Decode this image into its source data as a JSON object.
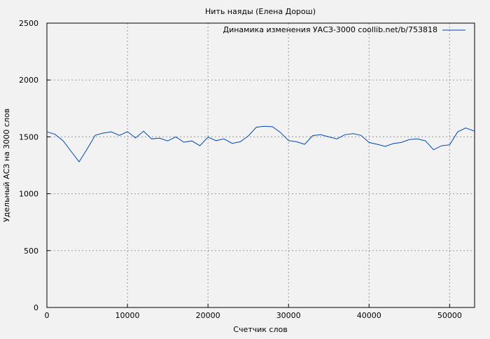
{
  "chart_data": {
    "type": "line",
    "title": "Нить наяды (Елена Дорош)",
    "xlabel": "Счетчик слов",
    "ylabel": "Удельный АСЗ на 3000 слов",
    "xlim": [
      0,
      53100
    ],
    "ylim": [
      0,
      2500
    ],
    "xticks": [
      0,
      10000,
      20000,
      30000,
      40000,
      50000
    ],
    "yticks": [
      0,
      500,
      1000,
      1500,
      2000,
      2500
    ],
    "grid": true,
    "legend_position": "top-right",
    "line_color": "#0047b3",
    "series": [
      {
        "name": "Динамика изменения УАСЗ-3000 coollib.net/b/753818",
        "x": [
          0,
          1000,
          2000,
          3000,
          4000,
          5000,
          6000,
          7000,
          8000,
          9000,
          10000,
          11000,
          12000,
          13000,
          14000,
          15000,
          16000,
          17000,
          18000,
          19000,
          20000,
          21000,
          22000,
          23000,
          24000,
          25000,
          26000,
          27000,
          28000,
          29000,
          30000,
          31000,
          32000,
          33000,
          34000,
          35000,
          36000,
          37000,
          38000,
          39000,
          40000,
          41000,
          42000,
          43000,
          44000,
          45000,
          46000,
          47000,
          48000,
          49000,
          50000,
          51000,
          52000,
          53100
        ],
        "y": [
          1544,
          1523,
          1467,
          1373,
          1281,
          1393,
          1515,
          1533,
          1544,
          1513,
          1546,
          1490,
          1550,
          1482,
          1488,
          1464,
          1500,
          1453,
          1464,
          1422,
          1498,
          1467,
          1482,
          1443,
          1457,
          1508,
          1585,
          1593,
          1589,
          1538,
          1467,
          1457,
          1435,
          1511,
          1519,
          1500,
          1482,
          1519,
          1529,
          1513,
          1451,
          1435,
          1416,
          1441,
          1451,
          1476,
          1482,
          1465,
          1387,
          1422,
          1430,
          1544,
          1578,
          1550
        ]
      }
    ]
  }
}
